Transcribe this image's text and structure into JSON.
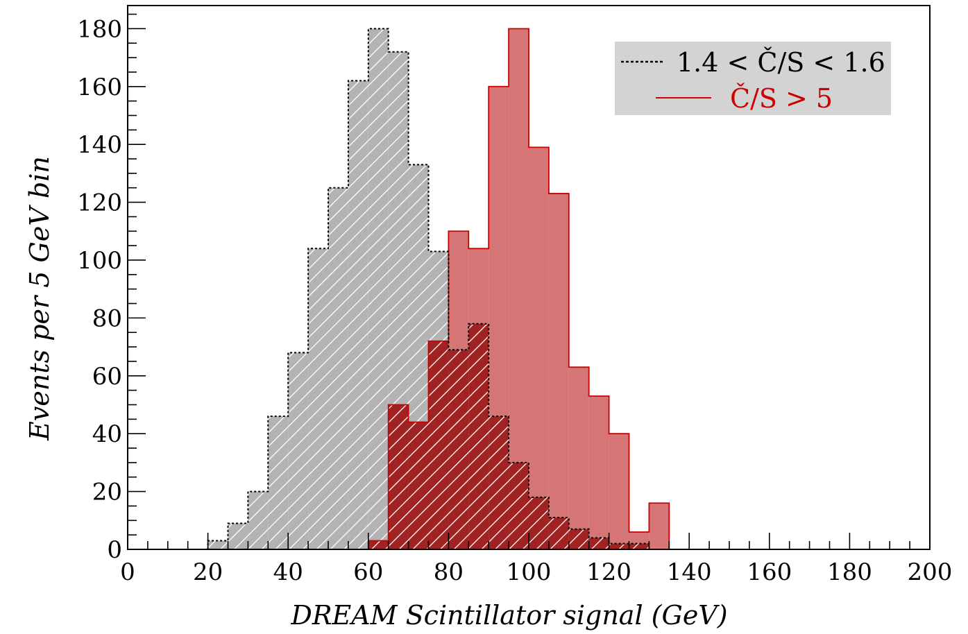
{
  "chart_data": {
    "type": "histogram",
    "xlabel": "DREAM Scintillator signal (GeV)",
    "ylabel": "Events per 5 GeV bin",
    "xlim": [
      0,
      200
    ],
    "ylim": [
      0,
      188
    ],
    "bin_width": 5,
    "x_ticks": [
      "0",
      "20",
      "40",
      "60",
      "80",
      "100",
      "120",
      "140",
      "160",
      "180",
      "200"
    ],
    "y_ticks": [
      "0",
      "20",
      "40",
      "60",
      "80",
      "100",
      "120",
      "140",
      "160",
      "180"
    ],
    "x_tick_values": [
      0,
      20,
      40,
      60,
      80,
      100,
      120,
      140,
      160,
      180,
      200
    ],
    "y_tick_values": [
      0,
      20,
      40,
      60,
      80,
      100,
      120,
      140,
      160,
      180
    ],
    "legend_position": "top-right",
    "legend_background": "#d3d3d3",
    "series": [
      {
        "name": "1.4 < Č/S < 1.6",
        "style": "dashed-outline-hatched",
        "fill_color": "#b3b3b3",
        "line_color": "#000000",
        "bin_edges": [
          20,
          25,
          30,
          35,
          40,
          45,
          50,
          55,
          60,
          65,
          70,
          75,
          80,
          85,
          90,
          95,
          100,
          105,
          110,
          115,
          120,
          125,
          130,
          135
        ],
        "counts": [
          3,
          9,
          20,
          46,
          68,
          104,
          125,
          162,
          180,
          172,
          133,
          103,
          69,
          78,
          46,
          30,
          18,
          11,
          7,
          4,
          2,
          2,
          0
        ]
      },
      {
        "name": "Č/S > 5",
        "style": "solid-filled",
        "fill_color": "#d57575",
        "line_color": "#cc0000",
        "overlap_color": "#a02222",
        "bin_edges": [
          60,
          65,
          70,
          75,
          80,
          85,
          90,
          95,
          100,
          105,
          110,
          115,
          120,
          125,
          130,
          135
        ],
        "counts": [
          3,
          50,
          44,
          72,
          110,
          104,
          160,
          180,
          139,
          123,
          63,
          53,
          40,
          6,
          16
        ]
      }
    ]
  }
}
